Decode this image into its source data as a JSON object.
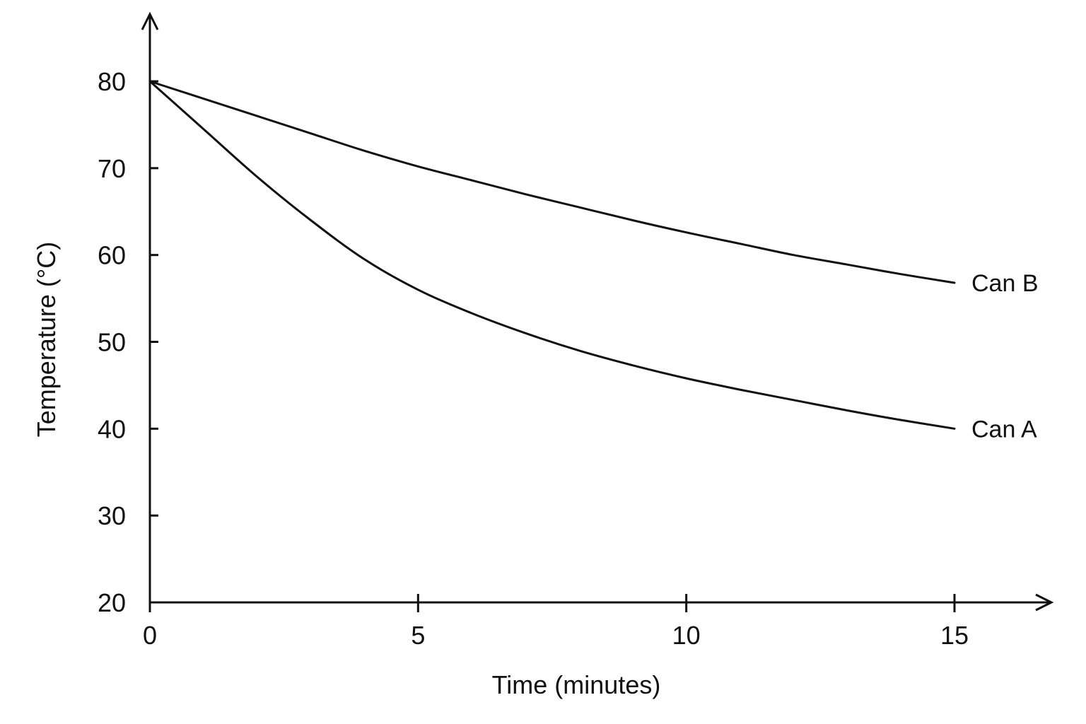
{
  "chart_data": {
    "type": "line",
    "title": "",
    "xlabel": "Time (minutes)",
    "ylabel": "Temperature (°C)",
    "xlim": [
      0,
      15
    ],
    "ylim": [
      20,
      80
    ],
    "x_ticks": [
      "0",
      "5",
      "10",
      "15"
    ],
    "y_ticks": [
      "20",
      "30",
      "40",
      "50",
      "60",
      "70",
      "80"
    ],
    "grid": false,
    "legend": "none (series labeled at line ends)",
    "series": [
      {
        "name": "Can A",
        "x": [
          0,
          1,
          2,
          3,
          4,
          5,
          6,
          7,
          8,
          9,
          10,
          11,
          12,
          13,
          14,
          15
        ],
        "values": [
          80,
          74.5,
          69,
          64,
          59.5,
          56,
          53.3,
          51,
          49,
          47.3,
          45.8,
          44.5,
          43.3,
          42.1,
          41,
          40
        ]
      },
      {
        "name": "Can B",
        "x": [
          0,
          1,
          2,
          3,
          4,
          5,
          6,
          7,
          8,
          9,
          10,
          11,
          12,
          13,
          14,
          15
        ],
        "values": [
          80,
          78,
          76,
          74,
          72,
          70.2,
          68.6,
          67,
          65.5,
          64,
          62.6,
          61.3,
          60,
          58.9,
          57.8,
          56.8
        ]
      }
    ]
  }
}
